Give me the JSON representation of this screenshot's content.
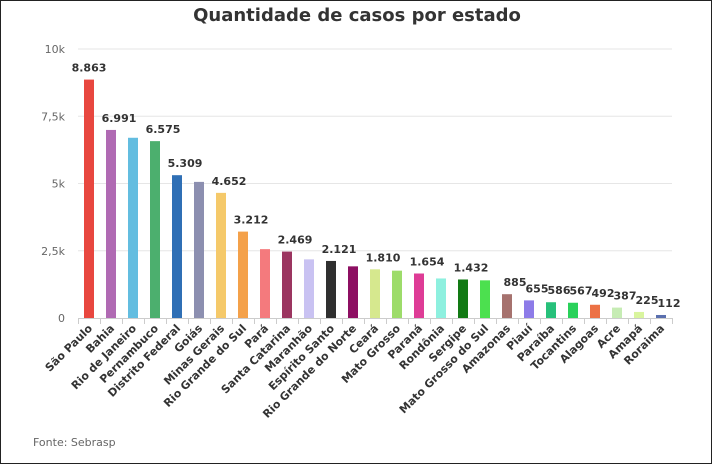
{
  "chart_data": {
    "type": "bar",
    "title": "Quantidade de casos por estado",
    "xlabel": "",
    "ylabel": "",
    "ylim": [
      0,
      10000
    ],
    "yticks": [
      {
        "value": 0,
        "label": "0"
      },
      {
        "value": 2500,
        "label": "2,5k"
      },
      {
        "value": 5000,
        "label": "5k"
      },
      {
        "value": 7500,
        "label": "7,5k"
      },
      {
        "value": 10000,
        "label": "10k"
      }
    ],
    "grid": true,
    "bars": [
      {
        "category": "São Paulo",
        "value": 8863,
        "label": "8.863",
        "color": "#e8473f"
      },
      {
        "category": "Bahia",
        "value": 6991,
        "label": "6.991",
        "color": "#b06ab3"
      },
      {
        "category": "Rio de Janeiro",
        "value": 6700,
        "label": null,
        "color": "#63bde0"
      },
      {
        "category": "Pernambuco",
        "value": 6575,
        "label": "6.575",
        "color": "#4caf6e"
      },
      {
        "category": "Distrito Federal",
        "value": 5309,
        "label": "5.309",
        "color": "#2f6fb5"
      },
      {
        "category": "Goiás",
        "value": 5060,
        "label": null,
        "color": "#8c8fb0"
      },
      {
        "category": "Minas Gerais",
        "value": 4652,
        "label": "4.652",
        "color": "#f5c96a"
      },
      {
        "category": "Rio Grande do Sul",
        "value": 3212,
        "label": "3.212",
        "color": "#f4a14a"
      },
      {
        "category": "Pará",
        "value": 2560,
        "label": null,
        "color": "#f47a7d"
      },
      {
        "category": "Santa Catarina",
        "value": 2469,
        "label": "2.469",
        "color": "#9b3560"
      },
      {
        "category": "Maranhão",
        "value": 2180,
        "label": null,
        "color": "#c9c2f2"
      },
      {
        "category": "Espírito Santo",
        "value": 2121,
        "label": "2.121",
        "color": "#2f2f2f"
      },
      {
        "category": "Rio Grande do Norte",
        "value": 1920,
        "label": null,
        "color": "#8d0f62"
      },
      {
        "category": "Ceará",
        "value": 1810,
        "label": "1.810",
        "color": "#d6e88e"
      },
      {
        "category": "Mato Grosso",
        "value": 1760,
        "label": null,
        "color": "#9ddc6a"
      },
      {
        "category": "Paraná",
        "value": 1654,
        "label": "1.654",
        "color": "#de3c96"
      },
      {
        "category": "Rondônia",
        "value": 1470,
        "label": null,
        "color": "#8ef0df"
      },
      {
        "category": "Sergipe",
        "value": 1432,
        "label": "1.432",
        "color": "#127a14"
      },
      {
        "category": "Mato Grosso do Sul",
        "value": 1400,
        "label": null,
        "color": "#4ce04f"
      },
      {
        "category": "Amazonas",
        "value": 885,
        "label": "885",
        "color": "#a6726e"
      },
      {
        "category": "Piauí",
        "value": 655,
        "label": "655",
        "color": "#8d7be8"
      },
      {
        "category": "Paraíba",
        "value": 586,
        "label": "586",
        "color": "#27c07a"
      },
      {
        "category": "Tocantins",
        "value": 567,
        "label": "567",
        "color": "#2ad15a"
      },
      {
        "category": "Alagoas",
        "value": 492,
        "label": "492",
        "color": "#ec7145"
      },
      {
        "category": "Acre",
        "value": 387,
        "label": "387",
        "color": "#c6ecb4"
      },
      {
        "category": "Amapá",
        "value": 225,
        "label": "225",
        "color": "#d9f59e"
      },
      {
        "category": "Roraima",
        "value": 112,
        "label": "112",
        "color": "#5a6fae"
      }
    ]
  },
  "source": "Fonte: Sebrasp"
}
